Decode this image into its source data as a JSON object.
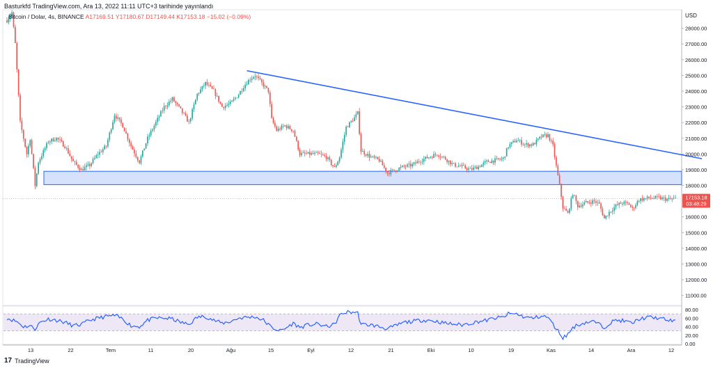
{
  "header": {
    "published": "Basturkfd TradingView.com, Ara 13, 2022 11:11 UTC+3 tarihinde yayınlandı"
  },
  "symbol": {
    "name": "Bitcoin / Dolar, 4s, BINANCE",
    "open": "A17169.51",
    "high": "Y17180.67",
    "low": "D17149.44",
    "close": "K17153.18",
    "change": "−15.02 (−0.09%)"
  },
  "footer": {
    "logo_text": "TradingView"
  },
  "colors": {
    "up": "#26a69a",
    "down": "#ef5350",
    "trend": "#2962ff",
    "zone_fill": "#cfdcfb",
    "zone_stroke": "#2962ff",
    "rsi": "#2962ff",
    "rsi_band": "#ede7f6",
    "price_tag": "#ef5350"
  },
  "chart_data": [
    {
      "type": "candlestick",
      "currency_label": "USD",
      "ylim": [
        10500,
        29000
      ],
      "y_ticks": [
        "28000.00",
        "27000.00",
        "26000.00",
        "25000.00",
        "24000.00",
        "23000.00",
        "22000.00",
        "21000.00",
        "20000.00",
        "19000.00",
        "18000.00",
        "17000.00",
        "16000.00",
        "15000.00",
        "14000.00",
        "13000.00",
        "12000.00",
        "11000.00"
      ],
      "x_ticks": [
        "13",
        "22",
        "Tem",
        "11",
        "20",
        "Ağu",
        "15",
        "Eyl",
        "12",
        "21",
        "Eki",
        "10",
        "19",
        "Kas",
        "14",
        "Ara",
        "12"
      ],
      "path_anchors": [
        [
          0,
          28500
        ],
        [
          3,
          29000
        ],
        [
          5,
          27000
        ],
        [
          8,
          22000
        ],
        [
          12,
          20000
        ],
        [
          14,
          21000
        ],
        [
          17,
          18000
        ],
        [
          19,
          19500
        ],
        [
          25,
          20800
        ],
        [
          30,
          21000
        ],
        [
          35,
          20500
        ],
        [
          40,
          19500
        ],
        [
          45,
          19000
        ],
        [
          50,
          19300
        ],
        [
          55,
          20000
        ],
        [
          60,
          20500
        ],
        [
          65,
          22500
        ],
        [
          70,
          21800
        ],
        [
          75,
          20500
        ],
        [
          80,
          19500
        ],
        [
          85,
          21000
        ],
        [
          90,
          22000
        ],
        [
          95,
          23000
        ],
        [
          100,
          23500
        ],
        [
          105,
          22800
        ],
        [
          110,
          22000
        ],
        [
          115,
          23800
        ],
        [
          120,
          24500
        ],
        [
          125,
          24000
        ],
        [
          130,
          23000
        ],
        [
          135,
          23200
        ],
        [
          140,
          23800
        ],
        [
          143,
          24300
        ],
        [
          147,
          24800
        ],
        [
          150,
          25000
        ],
        [
          154,
          24500
        ],
        [
          158,
          24000
        ],
        [
          160,
          22200
        ],
        [
          163,
          21500
        ],
        [
          168,
          21800
        ],
        [
          173,
          21500
        ],
        [
          177,
          20000
        ],
        [
          182,
          20000
        ],
        [
          188,
          20000
        ],
        [
          193,
          19800
        ],
        [
          198,
          19100
        ],
        [
          201,
          19800
        ],
        [
          205,
          21700
        ],
        [
          210,
          22300
        ],
        [
          212,
          22600
        ],
        [
          214,
          20200
        ],
        [
          220,
          19800
        ],
        [
          225,
          19600
        ],
        [
          230,
          18800
        ],
        [
          235,
          19000
        ],
        [
          240,
          19200
        ],
        [
          245,
          19300
        ],
        [
          250,
          19600
        ],
        [
          255,
          19800
        ],
        [
          260,
          20000
        ],
        [
          265,
          19700
        ],
        [
          270,
          19300
        ],
        [
          275,
          19200
        ],
        [
          280,
          19000
        ],
        [
          285,
          19200
        ],
        [
          290,
          19500
        ],
        [
          295,
          19600
        ],
        [
          300,
          19700
        ],
        [
          303,
          20500
        ],
        [
          308,
          20900
        ],
        [
          313,
          20600
        ],
        [
          318,
          20600
        ],
        [
          323,
          21100
        ],
        [
          327,
          21200
        ],
        [
          330,
          20500
        ],
        [
          332,
          19200
        ],
        [
          334,
          18000
        ],
        [
          336,
          16600
        ],
        [
          339,
          16200
        ],
        [
          342,
          17500
        ],
        [
          345,
          16700
        ],
        [
          350,
          16900
        ],
        [
          355,
          17000
        ],
        [
          358,
          16800
        ],
        [
          361,
          15900
        ],
        [
          364,
          16300
        ],
        [
          368,
          16700
        ],
        [
          372,
          16900
        ],
        [
          376,
          16800
        ],
        [
          378,
          16500
        ],
        [
          382,
          17100
        ],
        [
          388,
          17200
        ],
        [
          394,
          17200
        ],
        [
          400,
          17100
        ],
        [
          404,
          17153
        ]
      ],
      "resistance_zone": {
        "top": 18900,
        "bottom": 18050
      },
      "trend_line": {
        "start": {
          "index": 145,
          "value": 25300
        },
        "end": {
          "index": 420,
          "value": 19700
        }
      },
      "last_price": {
        "value": 17153.18,
        "label": "17153.18",
        "countdown": "03:48:29"
      }
    },
    {
      "type": "line",
      "name": "RSI",
      "ylim": [
        0,
        85
      ],
      "y_ticks": [
        "80.00",
        "60.00",
        "40.00",
        "20.00",
        "0.00"
      ],
      "band": [
        30,
        70
      ],
      "anchors": [
        [
          0,
          60
        ],
        [
          6,
          52
        ],
        [
          10,
          40
        ],
        [
          14,
          42
        ],
        [
          17,
          35
        ],
        [
          20,
          50
        ],
        [
          25,
          58
        ],
        [
          30,
          55
        ],
        [
          35,
          50
        ],
        [
          40,
          42
        ],
        [
          45,
          45
        ],
        [
          50,
          55
        ],
        [
          55,
          60
        ],
        [
          60,
          64
        ],
        [
          65,
          66
        ],
        [
          70,
          58
        ],
        [
          75,
          42
        ],
        [
          80,
          40
        ],
        [
          85,
          55
        ],
        [
          90,
          60
        ],
        [
          95,
          60
        ],
        [
          100,
          58
        ],
        [
          105,
          50
        ],
        [
          110,
          45
        ],
        [
          115,
          62
        ],
        [
          120,
          64
        ],
        [
          125,
          55
        ],
        [
          130,
          48
        ],
        [
          135,
          52
        ],
        [
          140,
          60
        ],
        [
          145,
          62
        ],
        [
          150,
          63
        ],
        [
          155,
          55
        ],
        [
          160,
          38
        ],
        [
          165,
          30
        ],
        [
          168,
          35
        ],
        [
          173,
          48
        ],
        [
          177,
          38
        ],
        [
          182,
          44
        ],
        [
          188,
          46
        ],
        [
          193,
          40
        ],
        [
          198,
          45
        ],
        [
          201,
          66
        ],
        [
          205,
          74
        ],
        [
          210,
          74
        ],
        [
          212,
          72
        ],
        [
          214,
          45
        ],
        [
          220,
          44
        ],
        [
          225,
          40
        ],
        [
          230,
          35
        ],
        [
          235,
          42
        ],
        [
          240,
          50
        ],
        [
          245,
          52
        ],
        [
          250,
          55
        ],
        [
          255,
          55
        ],
        [
          260,
          52
        ],
        [
          265,
          48
        ],
        [
          270,
          46
        ],
        [
          275,
          44
        ],
        [
          280,
          48
        ],
        [
          285,
          52
        ],
        [
          290,
          55
        ],
        [
          295,
          60
        ],
        [
          300,
          62
        ],
        [
          303,
          70
        ],
        [
          308,
          70
        ],
        [
          313,
          62
        ],
        [
          318,
          60
        ],
        [
          323,
          65
        ],
        [
          327,
          62
        ],
        [
          330,
          45
        ],
        [
          334,
          25
        ],
        [
          336,
          14
        ],
        [
          339,
          22
        ],
        [
          342,
          38
        ],
        [
          345,
          44
        ],
        [
          350,
          50
        ],
        [
          355,
          52
        ],
        [
          358,
          45
        ],
        [
          361,
          38
        ],
        [
          364,
          48
        ],
        [
          368,
          55
        ],
        [
          372,
          54
        ],
        [
          376,
          50
        ],
        [
          378,
          48
        ],
        [
          382,
          58
        ],
        [
          388,
          62
        ],
        [
          394,
          60
        ],
        [
          400,
          55
        ],
        [
          404,
          52
        ]
      ]
    }
  ]
}
